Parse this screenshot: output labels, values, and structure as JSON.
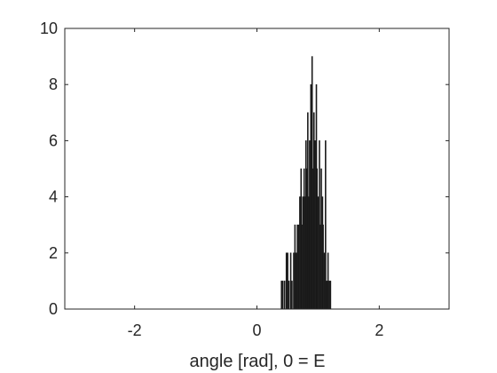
{
  "chart_data": {
    "type": "bar",
    "subtype": "histogram",
    "title": "",
    "xlabel": "angle [rad], 0 = E",
    "ylabel": "",
    "xlim": [
      -3.1416,
      3.1416
    ],
    "ylim": [
      0,
      10
    ],
    "xticks": [
      -2,
      0,
      2
    ],
    "xtick_labels": [
      "-2",
      "0",
      "2"
    ],
    "yticks": [
      0,
      2,
      4,
      6,
      8,
      10
    ],
    "ytick_labels": [
      "0",
      "2",
      "4",
      "6",
      "8",
      "10"
    ],
    "grid": false,
    "bar_color": "#1a1a1a",
    "bin_width": 0.01,
    "x": [
      0.4,
      0.42,
      0.45,
      0.48,
      0.5,
      0.52,
      0.55,
      0.57,
      0.6,
      0.62,
      0.64,
      0.66,
      0.68,
      0.7,
      0.72,
      0.73,
      0.75,
      0.77,
      0.78,
      0.8,
      0.82,
      0.83,
      0.85,
      0.86,
      0.88,
      0.9,
      0.92,
      0.93,
      0.95,
      0.97,
      0.98,
      1.0,
      1.02,
      1.03,
      1.05,
      1.07,
      1.08,
      1.1,
      1.12,
      1.14,
      1.16,
      1.18,
      1.2
    ],
    "values": [
      1,
      1,
      1,
      2,
      2,
      1,
      2,
      1,
      2,
      3,
      2,
      3,
      3,
      4,
      5,
      3,
      4,
      5,
      4,
      6,
      5,
      7,
      4,
      6,
      8,
      9,
      5,
      7,
      6,
      8,
      5,
      4,
      6,
      3,
      5,
      4,
      3,
      2,
      6,
      1,
      2,
      1,
      1
    ]
  }
}
